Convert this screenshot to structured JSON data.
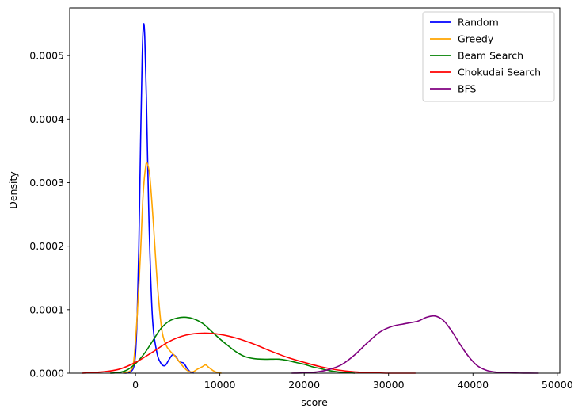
{
  "chart_data": {
    "type": "line",
    "title": "",
    "xlabel": "score",
    "ylabel": "Density",
    "xlim": [
      -7800,
      50300
    ],
    "ylim": [
      0,
      0.000575
    ],
    "x_ticks": [
      0,
      10000,
      20000,
      30000,
      40000,
      50000
    ],
    "x_tick_labels": [
      "0",
      "10000",
      "20000",
      "30000",
      "40000",
      "50000"
    ],
    "y_ticks": [
      0,
      0.0001,
      0.0002,
      0.0003,
      0.0004,
      0.0005
    ],
    "y_tick_labels": [
      "0.0000",
      "0.0001",
      "0.0002",
      "0.0003",
      "0.0004",
      "0.0005"
    ],
    "grid": false,
    "legend_position": "top-right",
    "series": [
      {
        "name": "Random",
        "color": "#0000ff",
        "points": [
          [
            -1300,
            0
          ],
          [
            -900,
            5e-07
          ],
          [
            -500,
            3e-06
          ],
          [
            -200,
            1e-05
          ],
          [
            0,
            3e-05
          ],
          [
            200,
            9e-05
          ],
          [
            400,
            0.0002
          ],
          [
            600,
            0.00036
          ],
          [
            800,
            0.0005
          ],
          [
            950,
            0.000548
          ],
          [
            1100,
            0.00053
          ],
          [
            1300,
            0.00043
          ],
          [
            1600,
            0.00024
          ],
          [
            2000,
            9e-05
          ],
          [
            2500,
            3.5e-05
          ],
          [
            3000,
            1.6e-05
          ],
          [
            3500,
            1.2e-05
          ],
          [
            4000,
            2.2e-05
          ],
          [
            4400,
            2.9e-05
          ],
          [
            4800,
            2.6e-05
          ],
          [
            5200,
            1.8e-05
          ],
          [
            5700,
            1.6e-05
          ],
          [
            6100,
            8e-06
          ],
          [
            6500,
            2e-06
          ],
          [
            6900,
            0
          ]
        ]
      },
      {
        "name": "Greedy",
        "color": "#ffa500",
        "points": [
          [
            -1500,
            0
          ],
          [
            -600,
            4e-06
          ],
          [
            -200,
            2e-05
          ],
          [
            200,
            9e-05
          ],
          [
            600,
            0.00019
          ],
          [
            900,
            0.00028
          ],
          [
            1200,
            0.000325
          ],
          [
            1400,
            0.00033
          ],
          [
            1700,
            0.00031
          ],
          [
            2100,
            0.00024
          ],
          [
            2600,
            0.00014
          ],
          [
            3100,
            7e-05
          ],
          [
            3600,
            4.5e-05
          ],
          [
            4100,
            3.5e-05
          ],
          [
            4600,
            2.8e-05
          ],
          [
            5200,
            1.8e-05
          ],
          [
            5800,
            8e-06
          ],
          [
            6300,
            3e-06
          ],
          [
            6800,
            2e-06
          ],
          [
            7300,
            6e-06
          ],
          [
            7900,
            1e-05
          ],
          [
            8300,
            1.3e-05
          ],
          [
            8700,
            9e-06
          ],
          [
            9200,
            4e-06
          ],
          [
            9700,
            1e-06
          ],
          [
            10200,
            0
          ]
        ]
      },
      {
        "name": "Beam Search",
        "color": "#008000",
        "points": [
          [
            -3000,
            0
          ],
          [
            -2000,
            1e-06
          ],
          [
            -1000,
            5e-06
          ],
          [
            0,
            1.5e-05
          ],
          [
            1000,
            3e-05
          ],
          [
            2000,
            5e-05
          ],
          [
            3000,
            7e-05
          ],
          [
            4000,
            8.2e-05
          ],
          [
            5000,
            8.7e-05
          ],
          [
            6000,
            8.8e-05
          ],
          [
            7000,
            8.5e-05
          ],
          [
            8000,
            7.8e-05
          ],
          [
            9000,
            6.6e-05
          ],
          [
            10000,
            5.4e-05
          ],
          [
            11000,
            4.3e-05
          ],
          [
            12000,
            3.3e-05
          ],
          [
            13000,
            2.6e-05
          ],
          [
            14000,
            2.3e-05
          ],
          [
            15000,
            2.2e-05
          ],
          [
            16000,
            2.2e-05
          ],
          [
            17000,
            2.2e-05
          ],
          [
            18000,
            2e-05
          ],
          [
            19000,
            1.7e-05
          ],
          [
            20000,
            1.4e-05
          ],
          [
            21000,
            1e-05
          ],
          [
            22000,
            7e-06
          ],
          [
            23000,
            4e-06
          ],
          [
            24000,
            2e-06
          ],
          [
            25000,
            1e-06
          ],
          [
            26000,
            0
          ]
        ]
      },
      {
        "name": "Chokudai Search",
        "color": "#ff0000",
        "points": [
          [
            -6300,
            0
          ],
          [
            -4000,
            2e-06
          ],
          [
            -2000,
            6e-06
          ],
          [
            0,
            1.7e-05
          ],
          [
            2000,
            3.3e-05
          ],
          [
            4000,
            5e-05
          ],
          [
            6000,
            6e-05
          ],
          [
            8000,
            6.3e-05
          ],
          [
            10000,
            6.1e-05
          ],
          [
            12000,
            5.5e-05
          ],
          [
            14000,
            4.6e-05
          ],
          [
            16000,
            3.5e-05
          ],
          [
            18000,
            2.5e-05
          ],
          [
            20000,
            1.7e-05
          ],
          [
            22000,
            1e-05
          ],
          [
            24000,
            5e-06
          ],
          [
            26000,
            2e-06
          ],
          [
            28000,
            1e-06
          ],
          [
            30000,
            0
          ],
          [
            33200,
            0
          ]
        ]
      },
      {
        "name": "BFS",
        "color": "#800080",
        "points": [
          [
            18500,
            0
          ],
          [
            20000,
            5e-07
          ],
          [
            21500,
            2e-06
          ],
          [
            23000,
            6e-06
          ],
          [
            24500,
            1.4e-05
          ],
          [
            26000,
            2.9e-05
          ],
          [
            27500,
            4.8e-05
          ],
          [
            29000,
            6.5e-05
          ],
          [
            30500,
            7.4e-05
          ],
          [
            32000,
            7.8e-05
          ],
          [
            33500,
            8.2e-05
          ],
          [
            34500,
            8.8e-05
          ],
          [
            35500,
            9e-05
          ],
          [
            36500,
            8.3e-05
          ],
          [
            37500,
            6.6e-05
          ],
          [
            38500,
            4.5e-05
          ],
          [
            39500,
            2.6e-05
          ],
          [
            40500,
            1.2e-05
          ],
          [
            41500,
            5e-06
          ],
          [
            42500,
            2e-06
          ],
          [
            44000,
            5e-07
          ],
          [
            46000,
            1e-07
          ],
          [
            47800,
            0
          ]
        ]
      }
    ]
  }
}
